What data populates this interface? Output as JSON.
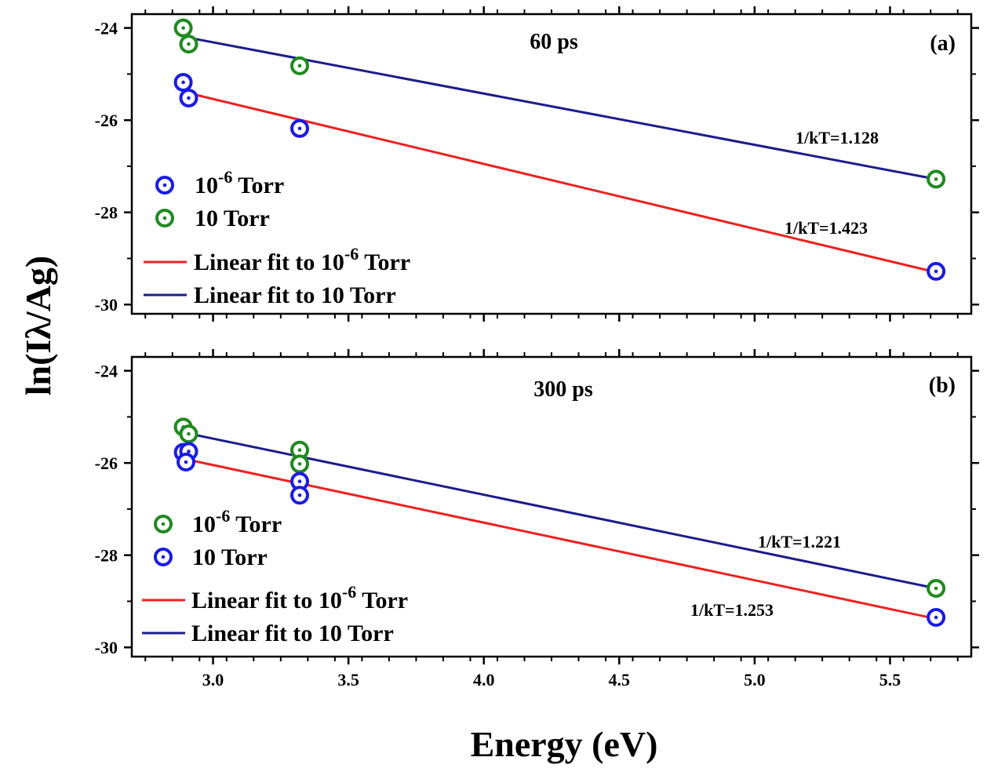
{
  "colors": {
    "blue": "#1a1ae6",
    "green": "#1f8a1f",
    "red": "#ee2020",
    "navy": "#1c1c8c",
    "axis": "#000000"
  },
  "chart_data": {
    "type": "scatter",
    "xlabel": "Energy (eV)",
    "ylabel": "ln(Iλ/Ag)",
    "xlim": [
      2.7,
      5.8
    ],
    "xticks": [
      {
        "v": 3.0,
        "label": "3.0"
      },
      {
        "v": 3.5,
        "label": "3.5"
      },
      {
        "v": 4.0,
        "label": "4.0"
      },
      {
        "v": 4.5,
        "label": "4.5"
      },
      {
        "v": 5.0,
        "label": "5.0"
      },
      {
        "v": 5.5,
        "label": "5.5"
      }
    ],
    "panels": [
      {
        "id": "a",
        "title": "60 ps",
        "tag": "(a)",
        "ylim": [
          -30.2,
          -23.7
        ],
        "yticks": [
          {
            "v": -24,
            "label": "-24"
          },
          {
            "v": -26,
            "label": "-26"
          },
          {
            "v": -28,
            "label": "-28"
          },
          {
            "v": -30,
            "label": "-30"
          }
        ],
        "series": [
          {
            "name": "10^-6 Torr",
            "legend_base": "10",
            "legend_exp": "-6",
            "legend_suffix": " Torr",
            "color": "blue",
            "points": [
              {
                "x": 2.89,
                "y": -25.18
              },
              {
                "x": 2.91,
                "y": -25.52
              },
              {
                "x": 3.32,
                "y": -26.18
              },
              {
                "x": 5.67,
                "y": -29.28
              }
            ]
          },
          {
            "name": "10 Torr",
            "legend_base": "10 Torr",
            "legend_exp": "",
            "legend_suffix": "",
            "color": "green",
            "points": [
              {
                "x": 2.89,
                "y": -24.0
              },
              {
                "x": 2.91,
                "y": -24.35
              },
              {
                "x": 3.32,
                "y": -24.82
              },
              {
                "x": 5.67,
                "y": -27.28
              }
            ]
          }
        ],
        "fits": [
          {
            "name": "Linear fit to 10^-6 Torr",
            "legend_pre": "Linear fit to 10",
            "legend_exp": "-6",
            "legend_suffix": " Torr",
            "color": "red",
            "x": [
              2.9,
              5.67
            ],
            "y": [
              -25.4,
              -29.3
            ],
            "label": "1/kT=1.423"
          },
          {
            "name": "Linear fit to 10 Torr",
            "legend_pre": "Linear fit to 10 Torr",
            "legend_exp": "",
            "legend_suffix": "",
            "color": "navy",
            "x": [
              2.9,
              5.67
            ],
            "y": [
              -24.2,
              -27.28
            ],
            "label": "1/kT=1.128"
          }
        ]
      },
      {
        "id": "b",
        "title": "300 ps",
        "tag": "(b)",
        "ylim": [
          -30.2,
          -23.7
        ],
        "yticks": [
          {
            "v": -24,
            "label": "-24"
          },
          {
            "v": -26,
            "label": "-26"
          },
          {
            "v": -28,
            "label": "-28"
          },
          {
            "v": -30,
            "label": "-30"
          }
        ],
        "series": [
          {
            "name": "10^-6 Torr",
            "legend_base": "10",
            "legend_exp": "-6",
            "legend_suffix": " Torr",
            "color": "green",
            "points": [
              {
                "x": 2.89,
                "y": -25.22
              },
              {
                "x": 2.91,
                "y": -25.37
              },
              {
                "x": 3.32,
                "y": -25.72
              },
              {
                "x": 3.32,
                "y": -26.02
              },
              {
                "x": 5.67,
                "y": -28.72
              }
            ]
          },
          {
            "name": "10 Torr",
            "legend_base": "10 Torr",
            "legend_exp": "",
            "legend_suffix": "",
            "color": "blue",
            "points": [
              {
                "x": 2.89,
                "y": -25.77
              },
              {
                "x": 2.91,
                "y": -25.75
              },
              {
                "x": 2.9,
                "y": -25.98
              },
              {
                "x": 3.32,
                "y": -26.4
              },
              {
                "x": 3.32,
                "y": -26.7
              },
              {
                "x": 5.67,
                "y": -29.35
              }
            ]
          }
        ],
        "fits": [
          {
            "name": "Linear fit to 10^-6 Torr",
            "legend_pre": "Linear fit to 10",
            "legend_exp": "-6",
            "legend_suffix": " Torr",
            "color": "red",
            "x": [
              2.9,
              5.67
            ],
            "y": [
              -25.92,
              -29.38
            ],
            "label": "1/kT=1.253"
          },
          {
            "name": "Linear fit to 10 Torr",
            "legend_pre": "Linear fit to 10 Torr",
            "legend_exp": "",
            "legend_suffix": "",
            "color": "navy",
            "x": [
              2.9,
              5.67
            ],
            "y": [
              -25.35,
              -28.72
            ],
            "label": "1/kT=1.221"
          }
        ]
      }
    ]
  }
}
